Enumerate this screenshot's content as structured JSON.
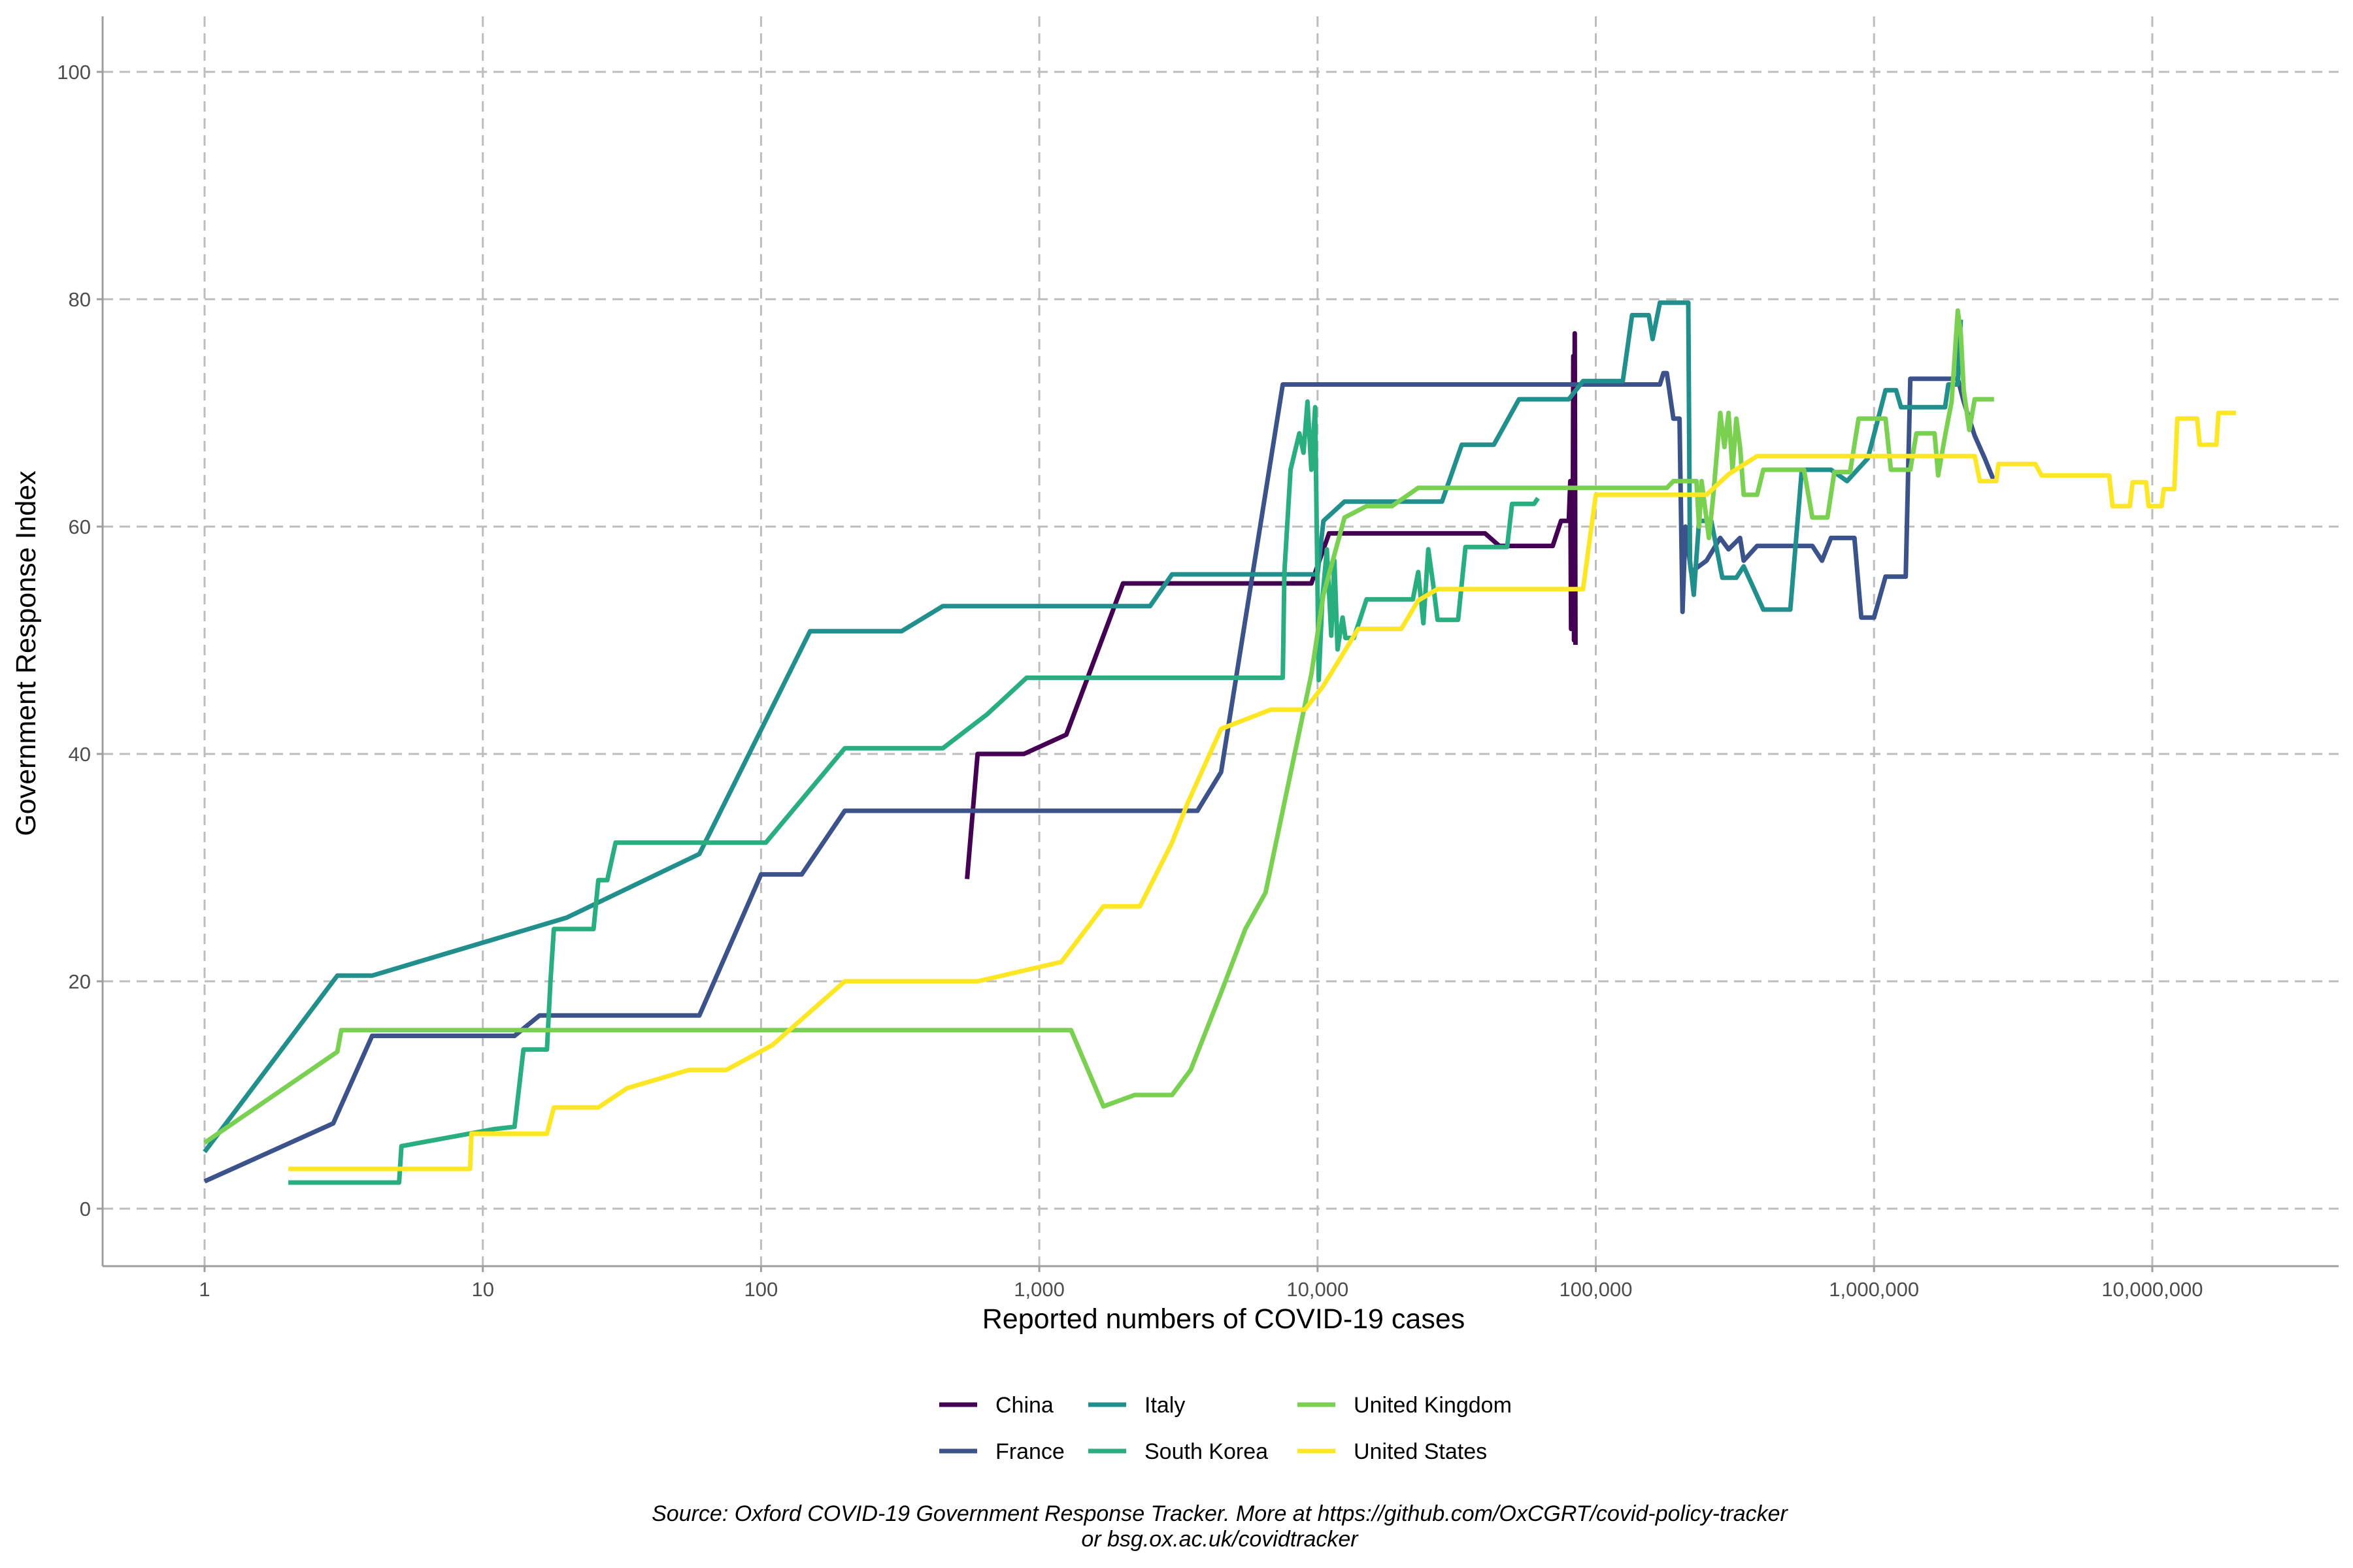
{
  "chart_data": {
    "type": "line",
    "xlabel": "Reported numbers of COVID-19 cases",
    "ylabel": "Government Response Index",
    "x_scale": "log10",
    "xlim": [
      0.5,
      60000000
    ],
    "ylim": [
      -5,
      105
    ],
    "x_ticks": [
      {
        "value": 1,
        "label": "1"
      },
      {
        "value": 10,
        "label": "10"
      },
      {
        "value": 100,
        "label": "100"
      },
      {
        "value": 1000,
        "label": "1,000"
      },
      {
        "value": 10000,
        "label": "10,000"
      },
      {
        "value": 100000,
        "label": "100,000"
      },
      {
        "value": 1000000,
        "label": "1,000,000"
      },
      {
        "value": 10000000,
        "label": "10,000,000"
      }
    ],
    "y_ticks": [
      {
        "value": 0,
        "label": "0"
      },
      {
        "value": 20,
        "label": "20"
      },
      {
        "value": 40,
        "label": "40"
      },
      {
        "value": 60,
        "label": "60"
      },
      {
        "value": 80,
        "label": "80"
      },
      {
        "value": 100,
        "label": "100"
      }
    ],
    "grid": "major, dashed grey",
    "legend_position": "bottom",
    "caption_lines": [
      "Source: Oxford COVID-19 Government Response Tracker. More at https://github.com/OxCGRT/covid-policy-tracker",
      "or bsg.ox.ac.uk/covidtracker"
    ],
    "series": [
      {
        "name": "China",
        "color": "#440154",
        "points": [
          [
            550,
            29
          ],
          [
            600,
            40
          ],
          [
            880,
            40
          ],
          [
            1250,
            41.7
          ],
          [
            2000,
            55
          ],
          [
            3000,
            55
          ],
          [
            7500,
            55
          ],
          [
            9500,
            55
          ],
          [
            11000,
            59.4
          ],
          [
            40000,
            59.4
          ],
          [
            45000,
            58.3
          ],
          [
            70000,
            58.3
          ],
          [
            75000,
            60.5
          ],
          [
            80000,
            60.5
          ],
          [
            81000,
            64
          ],
          [
            81500,
            51
          ],
          [
            82000,
            64
          ],
          [
            82500,
            52
          ],
          [
            83000,
            75
          ],
          [
            83500,
            50
          ],
          [
            84000,
            77
          ],
          [
            84500,
            49.6
          ]
        ]
      },
      {
        "name": "France",
        "color": "#3B528B",
        "points": [
          [
            1,
            2.4
          ],
          [
            2.9,
            7.5
          ],
          [
            4,
            15.2
          ],
          [
            13,
            15.2
          ],
          [
            16,
            17
          ],
          [
            60,
            17
          ],
          [
            100,
            29.4
          ],
          [
            140,
            29.4
          ],
          [
            200,
            35
          ],
          [
            3700,
            35
          ],
          [
            4500,
            38.4
          ],
          [
            7500,
            72.5
          ],
          [
            170000,
            72.5
          ],
          [
            175000,
            73.5
          ],
          [
            180000,
            73.5
          ],
          [
            190000,
            69.5
          ],
          [
            200000,
            69.5
          ],
          [
            205000,
            52.5
          ],
          [
            210000,
            60
          ],
          [
            220000,
            56
          ],
          [
            250000,
            57
          ],
          [
            280000,
            59
          ],
          [
            300000,
            58
          ],
          [
            330000,
            59
          ],
          [
            340000,
            57
          ],
          [
            380000,
            58.3
          ],
          [
            600000,
            58.3
          ],
          [
            650000,
            57
          ],
          [
            700000,
            59
          ],
          [
            850000,
            59
          ],
          [
            900000,
            52
          ],
          [
            1000000,
            52
          ],
          [
            1100000,
            55.6
          ],
          [
            1300000,
            55.6
          ],
          [
            1350000,
            73
          ],
          [
            2000000,
            73
          ],
          [
            2100000,
            71
          ],
          [
            2300000,
            68
          ],
          [
            2500000,
            66
          ],
          [
            2700000,
            64
          ]
        ]
      },
      {
        "name": "Italy",
        "color": "#21908C",
        "points": [
          [
            1,
            5
          ],
          [
            3,
            20.5
          ],
          [
            4,
            20.5
          ],
          [
            20,
            25.6
          ],
          [
            60,
            31.2
          ],
          [
            150,
            50.8
          ],
          [
            320,
            50.8
          ],
          [
            450,
            53
          ],
          [
            2500,
            53
          ],
          [
            3000,
            55.8
          ],
          [
            10000,
            55.8
          ],
          [
            10500,
            60.5
          ],
          [
            12500,
            62.2
          ],
          [
            28000,
            62.2
          ],
          [
            33000,
            67.2
          ],
          [
            43000,
            67.2
          ],
          [
            53000,
            71.2
          ],
          [
            80000,
            71.2
          ],
          [
            90000,
            72.8
          ],
          [
            125000,
            72.8
          ],
          [
            135000,
            78.6
          ],
          [
            155000,
            78.6
          ],
          [
            160000,
            76.5
          ],
          [
            170000,
            79.7
          ],
          [
            215000,
            79.7
          ],
          [
            218000,
            57
          ],
          [
            225000,
            54
          ],
          [
            235000,
            60.5
          ],
          [
            260000,
            60.5
          ],
          [
            285000,
            55.5
          ],
          [
            320000,
            55.5
          ],
          [
            340000,
            56.5
          ],
          [
            400000,
            52.7
          ],
          [
            500000,
            52.7
          ],
          [
            550000,
            65
          ],
          [
            700000,
            65
          ],
          [
            800000,
            64
          ],
          [
            950000,
            66
          ],
          [
            1100000,
            72
          ],
          [
            1200000,
            72
          ],
          [
            1250000,
            70.5
          ],
          [
            1800000,
            70.5
          ],
          [
            1850000,
            72.5
          ],
          [
            2000000,
            72.5
          ],
          [
            2050000,
            78.2
          ]
        ]
      },
      {
        "name": "South Korea",
        "color": "#29AF7F",
        "points": [
          [
            2,
            2.3
          ],
          [
            5,
            2.3
          ],
          [
            5.1,
            5.5
          ],
          [
            11,
            7
          ],
          [
            13,
            7.2
          ],
          [
            14,
            14
          ],
          [
            17,
            14
          ],
          [
            17.5,
            20
          ],
          [
            18,
            24.6
          ],
          [
            25,
            24.6
          ],
          [
            26,
            28.9
          ],
          [
            28,
            28.9
          ],
          [
            30,
            32.2
          ],
          [
            104,
            32.2
          ],
          [
            200,
            40.5
          ],
          [
            450,
            40.5
          ],
          [
            650,
            43.5
          ],
          [
            900,
            46.7
          ],
          [
            2500,
            46.7
          ],
          [
            7500,
            46.7
          ],
          [
            7600,
            56
          ],
          [
            8000,
            65
          ],
          [
            8600,
            68.2
          ],
          [
            8900,
            66.5
          ],
          [
            9200,
            71
          ],
          [
            9500,
            65
          ],
          [
            9800,
            70.5
          ],
          [
            10100,
            46.5
          ],
          [
            10400,
            53.6
          ],
          [
            10800,
            58
          ],
          [
            11200,
            50.4
          ],
          [
            11500,
            57
          ],
          [
            11800,
            49.2
          ],
          [
            12300,
            52
          ],
          [
            12600,
            50.2
          ],
          [
            13500,
            50.2
          ],
          [
            15000,
            53.6
          ],
          [
            22000,
            53.6
          ],
          [
            23000,
            56
          ],
          [
            24000,
            51.5
          ],
          [
            25000,
            58
          ],
          [
            26000,
            55
          ],
          [
            27000,
            51.8
          ],
          [
            32000,
            51.8
          ],
          [
            34000,
            58.2
          ],
          [
            48000,
            58.2
          ],
          [
            50000,
            62
          ],
          [
            60000,
            62
          ],
          [
            62000,
            62.5
          ]
        ]
      },
      {
        "name": "United Kingdom",
        "color": "#7AD151",
        "points": [
          [
            1,
            5.8
          ],
          [
            3,
            13.8
          ],
          [
            3.1,
            15.7
          ],
          [
            1300,
            15.7
          ],
          [
            1700,
            9
          ],
          [
            2200,
            10
          ],
          [
            3000,
            10
          ],
          [
            3500,
            12.2
          ],
          [
            4500,
            19
          ],
          [
            5500,
            24.6
          ],
          [
            6500,
            27.8
          ],
          [
            9500,
            47
          ],
          [
            10500,
            54
          ],
          [
            12500,
            60.8
          ],
          [
            15000,
            61.8
          ],
          [
            18500,
            61.8
          ],
          [
            23000,
            63.4
          ],
          [
            180000,
            63.4
          ],
          [
            190000,
            64
          ],
          [
            230000,
            64
          ],
          [
            235000,
            60
          ],
          [
            240000,
            64
          ],
          [
            255000,
            59
          ],
          [
            265000,
            63
          ],
          [
            280000,
            70
          ],
          [
            290000,
            67
          ],
          [
            300000,
            70
          ],
          [
            310000,
            65
          ],
          [
            320000,
            69.5
          ],
          [
            330000,
            67
          ],
          [
            340000,
            62.8
          ],
          [
            380000,
            62.8
          ],
          [
            400000,
            65
          ],
          [
            560000,
            65
          ],
          [
            600000,
            60.8
          ],
          [
            680000,
            60.8
          ],
          [
            720000,
            64.8
          ],
          [
            820000,
            64.8
          ],
          [
            880000,
            69.5
          ],
          [
            1100000,
            69.5
          ],
          [
            1150000,
            65
          ],
          [
            1350000,
            65
          ],
          [
            1420000,
            68.2
          ],
          [
            1650000,
            68.2
          ],
          [
            1700000,
            64.5
          ],
          [
            1800000,
            68
          ],
          [
            1900000,
            71
          ],
          [
            1950000,
            75
          ],
          [
            2000000,
            79
          ],
          [
            2050000,
            77
          ],
          [
            2100000,
            72
          ],
          [
            2200000,
            68.5
          ],
          [
            2300000,
            71.2
          ],
          [
            2700000,
            71.2
          ]
        ]
      },
      {
        "name": "United States",
        "color": "#FDE725",
        "points": [
          [
            2,
            3.5
          ],
          [
            9,
            3.5
          ],
          [
            9.1,
            6.6
          ],
          [
            17,
            6.6
          ],
          [
            18,
            8.9
          ],
          [
            26,
            8.9
          ],
          [
            33,
            10.6
          ],
          [
            55,
            12.2
          ],
          [
            75,
            12.2
          ],
          [
            110,
            14.4
          ],
          [
            200,
            20
          ],
          [
            600,
            20
          ],
          [
            900,
            21
          ],
          [
            1200,
            21.7
          ],
          [
            1700,
            26.6
          ],
          [
            2300,
            26.6
          ],
          [
            3000,
            32.2
          ],
          [
            3400,
            35.6
          ],
          [
            4500,
            42.2
          ],
          [
            6800,
            43.9
          ],
          [
            9000,
            43.9
          ],
          [
            10500,
            46
          ],
          [
            14000,
            51
          ],
          [
            20000,
            51
          ],
          [
            23000,
            53.5
          ],
          [
            27000,
            54.5
          ],
          [
            90000,
            54.5
          ],
          [
            100000,
            62.8
          ],
          [
            250000,
            62.8
          ],
          [
            300000,
            64.6
          ],
          [
            380000,
            66.2
          ],
          [
            2300000,
            66.2
          ],
          [
            2400000,
            64
          ],
          [
            2750000,
            64
          ],
          [
            2800000,
            65.5
          ],
          [
            3800000,
            65.5
          ],
          [
            4000000,
            64.5
          ],
          [
            7000000,
            64.5
          ],
          [
            7200000,
            61.8
          ],
          [
            8300000,
            61.8
          ],
          [
            8500000,
            63.9
          ],
          [
            9500000,
            63.9
          ],
          [
            9700000,
            61.8
          ],
          [
            10800000,
            61.8
          ],
          [
            11000000,
            63.3
          ],
          [
            12000000,
            63.3
          ],
          [
            12300000,
            69.5
          ],
          [
            14500000,
            69.5
          ],
          [
            14800000,
            67.2
          ],
          [
            17000000,
            67.2
          ],
          [
            17300000,
            70
          ],
          [
            20000000,
            70
          ]
        ]
      }
    ]
  }
}
